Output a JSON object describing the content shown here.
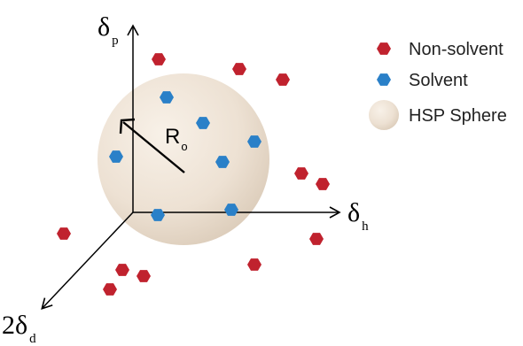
{
  "axes": {
    "p": {
      "symbol": "δ",
      "subscript": "p"
    },
    "h": {
      "symbol": "δ",
      "subscript": "h"
    },
    "d": {
      "prefix": "2",
      "symbol": "δ",
      "subscript": "d"
    }
  },
  "radius_label": {
    "symbol": "R",
    "subscript": "o"
  },
  "legend": {
    "non_solvent": "Non-solvent",
    "solvent": "Solvent",
    "sphere": "HSP Sphere"
  },
  "colors": {
    "non_solvent": "#c0222e",
    "solvent": "#2a80c8",
    "sphere": "#eee2d4",
    "axis": "#000000"
  },
  "icons": {
    "non_solvent": "red-hexagon",
    "solvent": "blue-hexagon",
    "sphere": "beige-circle"
  }
}
